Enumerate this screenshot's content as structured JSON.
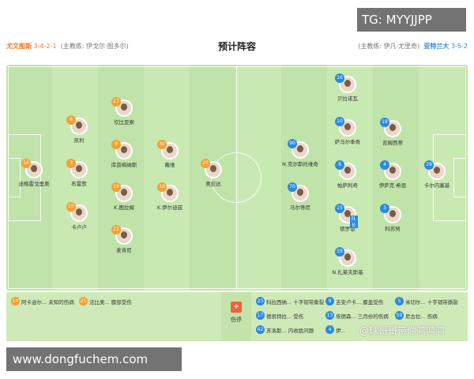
{
  "header": {
    "title": "预计阵容",
    "home": {
      "name": "尤文图斯",
      "formation": "3-4-2-1",
      "coach": "(主教练: 伊戈尔·图多尔)",
      "color": "#f07a2a"
    },
    "away": {
      "name": "亚特兰大",
      "formation": "3-5-2",
      "coach": "(主教练: 伊凡·尤里奇)",
      "color": "#2a8ae0"
    }
  },
  "home_players": [
    {
      "num": "16",
      "name": "迪格雷戈里奥"
    },
    {
      "num": "6",
      "name": "凯利"
    },
    {
      "num": "3",
      "name": "布雷默"
    },
    {
      "num": "15",
      "name": "卡卢卢"
    },
    {
      "num": "27",
      "name": "坎比亚索"
    },
    {
      "num": "8",
      "name": "库普梅纳斯"
    },
    {
      "num": "19",
      "name": "K.图拉姆"
    },
    {
      "num": "22",
      "name": "麦肯尼"
    },
    {
      "num": "30",
      "name": "戴维"
    },
    {
      "num": "10",
      "name": "K.伊尔迪兹"
    },
    {
      "num": "20",
      "name": "奥彭达"
    }
  ],
  "away_players": [
    {
      "num": "29",
      "name": "卡尔内塞基"
    },
    {
      "num": "19",
      "name": "吉姆西蒂"
    },
    {
      "num": "4",
      "name": "伊萨克·希恩"
    },
    {
      "num": "3",
      "name": "科苏努"
    },
    {
      "num": "16",
      "name": "贝拉诺瓦"
    },
    {
      "num": "10",
      "name": "萨马尔季奇"
    },
    {
      "num": "8",
      "name": "帕萨利奇"
    },
    {
      "num": "15",
      "name": "德罗恩",
      "captain": "队长"
    },
    {
      "num": "59",
      "name": "N.扎莱夫斯基"
    },
    {
      "num": "90",
      "name": "N.克尔斯托维奇"
    },
    {
      "num": "70",
      "name": "马尔蒂尼"
    }
  ],
  "injuries": {
    "label": "伤停",
    "home": [
      {
        "num": "14",
        "text": "阿卡迪尔... 未知的伤病"
      },
      {
        "num": "21",
        "text": "法比奥... 膝部受伤"
      }
    ],
    "away": [
      {
        "num": "23",
        "text": "科拉西纳... 十字韧带撕裂"
      },
      {
        "num": "9",
        "text": "吉安卢卡... 膝盖受伤"
      },
      {
        "num": "5",
        "text": "米切尔... 十字韧带撕裂"
      },
      {
        "num": "17",
        "text": "德凯特拉... 受伤"
      },
      {
        "num": "13",
        "text": "埃德森... 三月份的伤病"
      },
      {
        "num": "59",
        "text": "尼古拉... 伤病"
      },
      {
        "num": "42",
        "text": "苏洛斯... 内收肌问题"
      },
      {
        "num": "4",
        "text": "伊..."
      }
    ]
  },
  "watermark": "@球哥哥带你鸿鸿鸿",
  "overlay": {
    "tg": "TG: MYYJJPP",
    "site": "www.dongfuchem.com"
  }
}
